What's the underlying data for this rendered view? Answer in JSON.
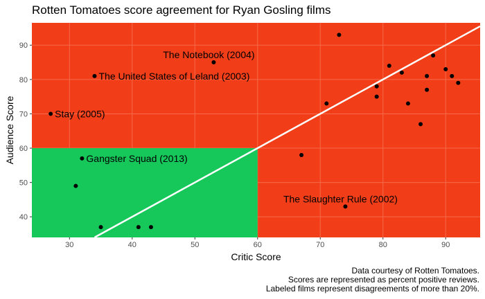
{
  "chart_data": {
    "type": "scatter",
    "title": "Rotten Tomatoes score agreement for Ryan Gosling films",
    "xlabel": "Critic Score",
    "ylabel": "Audience Score",
    "xlim": [
      24,
      95.5
    ],
    "ylim": [
      34,
      96.5
    ],
    "x_ticks": [
      30,
      40,
      50,
      60,
      70,
      80,
      90
    ],
    "y_ticks": [
      40,
      50,
      60,
      70,
      80,
      90
    ],
    "grid": true,
    "colors": {
      "background": "#f23e18",
      "region": "#16c85a",
      "point": "#000000",
      "line": "#ffffff",
      "grid": "#f56b4b"
    },
    "region": {
      "x": [
        24,
        60
      ],
      "y": [
        34,
        60
      ]
    },
    "reference_line": {
      "intercept": 0,
      "slope": 1
    },
    "points": [
      {
        "x": 27,
        "y": 70,
        "label": "Stay (2005)"
      },
      {
        "x": 31,
        "y": 49,
        "label": ""
      },
      {
        "x": 32,
        "y": 57,
        "label": "Gangster Squad (2013)"
      },
      {
        "x": 34,
        "y": 81,
        "label": "The United States of Leland (2003)"
      },
      {
        "x": 35,
        "y": 37,
        "label": ""
      },
      {
        "x": 41,
        "y": 37,
        "label": ""
      },
      {
        "x": 43,
        "y": 37,
        "label": ""
      },
      {
        "x": 53,
        "y": 85,
        "label": "The Notebook (2004)"
      },
      {
        "x": 67,
        "y": 58,
        "label": ""
      },
      {
        "x": 71,
        "y": 73,
        "label": ""
      },
      {
        "x": 73,
        "y": 93,
        "label": ""
      },
      {
        "x": 74,
        "y": 43,
        "label": "The Slaughter Rule (2002)"
      },
      {
        "x": 79,
        "y": 75,
        "label": ""
      },
      {
        "x": 79,
        "y": 78,
        "label": ""
      },
      {
        "x": 81,
        "y": 84,
        "label": ""
      },
      {
        "x": 83,
        "y": 82,
        "label": ""
      },
      {
        "x": 84,
        "y": 73,
        "label": ""
      },
      {
        "x": 86,
        "y": 67,
        "label": ""
      },
      {
        "x": 87,
        "y": 77,
        "label": ""
      },
      {
        "x": 87,
        "y": 81,
        "label": ""
      },
      {
        "x": 88,
        "y": 87,
        "label": ""
      },
      {
        "x": 90,
        "y": 83,
        "label": ""
      },
      {
        "x": 91,
        "y": 81,
        "label": ""
      },
      {
        "x": 92,
        "y": 79,
        "label": ""
      }
    ],
    "caption": [
      "Data courtesy of Rotten Tomatoes.",
      "Scores are represented as percent positive reviews.",
      "Labeled films represent disagreements of more than 20%."
    ]
  }
}
